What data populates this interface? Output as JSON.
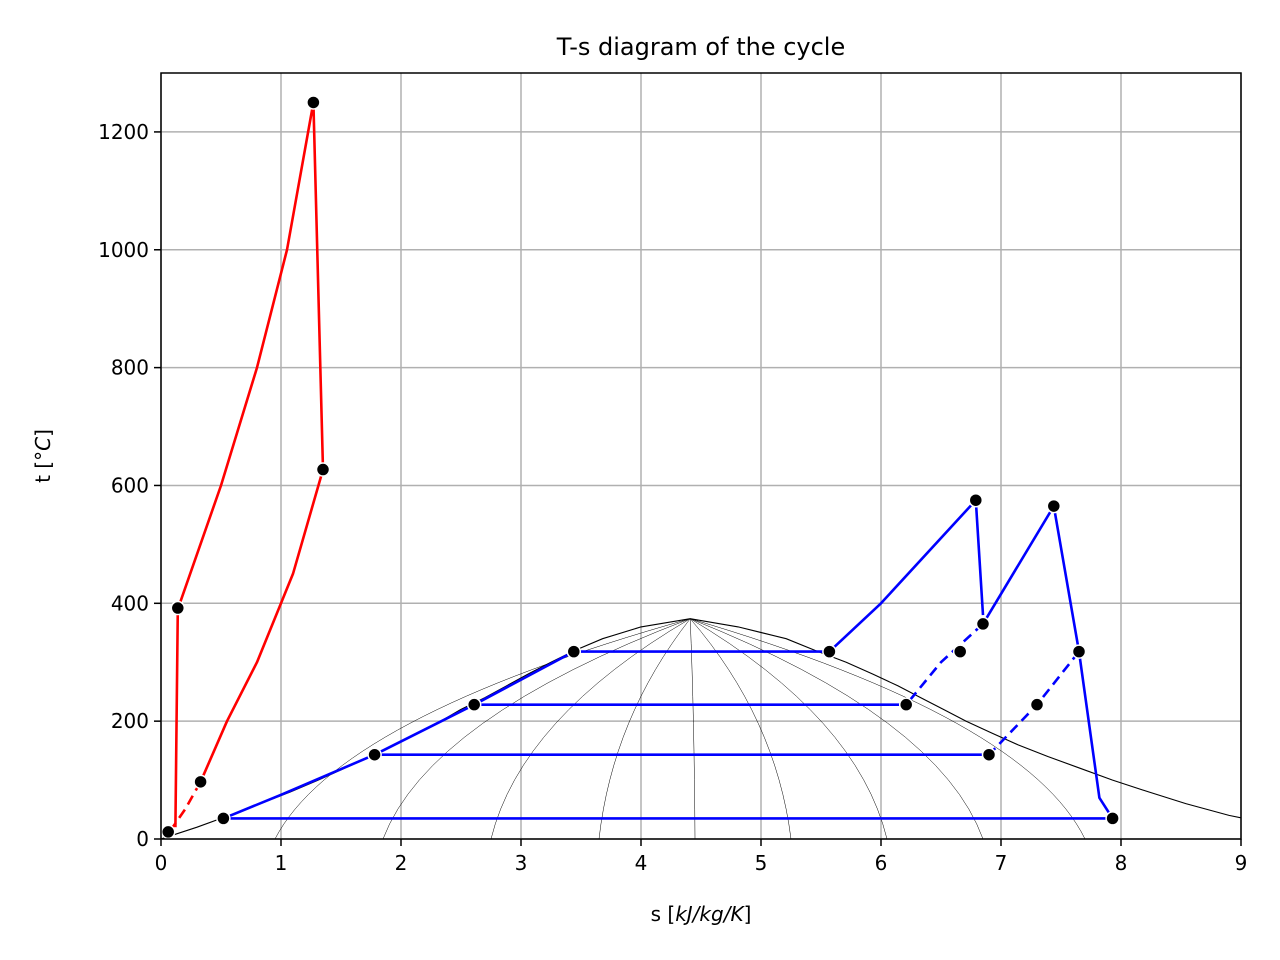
{
  "chart_data": {
    "type": "line",
    "title": "T-s diagram of the cycle",
    "xlabel_prefix": "s [",
    "xlabel_unit": "kJ/kg/K",
    "xlabel_suffix": "]",
    "ylabel_prefix": "t [",
    "ylabel_unit": "°C",
    "ylabel_suffix": "]",
    "xlim": [
      0,
      9
    ],
    "ylim": [
      0,
      1300
    ],
    "xticks": [
      0,
      1,
      2,
      3,
      4,
      5,
      6,
      7,
      8,
      9
    ],
    "yticks": [
      0,
      200,
      400,
      600,
      800,
      1000,
      1200
    ],
    "grid": true,
    "colors": {
      "topping": "#ff0000",
      "steam": "#0000ff",
      "dome": "#000000",
      "marker": "#000000",
      "grid": "#b0b0b0"
    },
    "saturation_dome": [
      [
        0.0,
        0.01
      ],
      [
        0.3,
        20
      ],
      [
        0.57,
        40
      ],
      [
        0.83,
        60
      ],
      [
        1.08,
        80
      ],
      [
        1.31,
        100
      ],
      [
        1.53,
        120
      ],
      [
        1.74,
        140
      ],
      [
        1.94,
        160
      ],
      [
        2.14,
        180
      ],
      [
        2.33,
        200
      ],
      [
        2.5,
        220
      ],
      [
        2.7,
        240
      ],
      [
        2.88,
        260
      ],
      [
        3.06,
        280
      ],
      [
        3.25,
        300
      ],
      [
        3.45,
        320
      ],
      [
        3.68,
        340
      ],
      [
        4.0,
        360
      ],
      [
        4.41,
        373.9
      ],
      [
        4.81,
        360
      ],
      [
        5.21,
        340
      ],
      [
        5.45,
        320
      ],
      [
        5.71,
        300
      ],
      [
        5.93,
        280
      ],
      [
        6.14,
        260
      ],
      [
        6.33,
        240
      ],
      [
        6.52,
        220
      ],
      [
        6.71,
        200
      ],
      [
        6.92,
        180
      ],
      [
        7.14,
        160
      ],
      [
        7.39,
        140
      ],
      [
        7.66,
        120
      ],
      [
        7.93,
        100
      ],
      [
        8.23,
        80
      ],
      [
        8.54,
        60
      ],
      [
        8.9,
        40
      ],
      [
        9.0,
        36
      ]
    ],
    "quality_lines": [
      {
        "x": [
          0.95,
          4.41
        ],
        "y": [
          0,
          373.9
        ]
      },
      {
        "x": [
          1.85,
          4.41
        ],
        "y": [
          0,
          373.9
        ]
      },
      {
        "x": [
          2.75,
          4.41
        ],
        "y": [
          0,
          373.9
        ]
      },
      {
        "x": [
          3.65,
          4.41
        ],
        "y": [
          0,
          373.9
        ]
      },
      {
        "x": [
          4.45,
          4.41
        ],
        "y": [
          0,
          373.9
        ]
      },
      {
        "x": [
          5.25,
          4.41
        ],
        "y": [
          0,
          373.9
        ]
      },
      {
        "x": [
          6.05,
          4.41
        ],
        "y": [
          0,
          373.9
        ]
      },
      {
        "x": [
          6.85,
          4.41
        ],
        "y": [
          0,
          373.9
        ]
      },
      {
        "x": [
          7.7,
          4.41
        ],
        "y": [
          0,
          373.9
        ]
      }
    ],
    "series": [
      {
        "style": "topping",
        "dash": false,
        "points": [
          [
            0.12,
            20
          ],
          [
            0.14,
            390
          ],
          [
            0.5,
            600
          ],
          [
            0.8,
            800
          ],
          [
            1.05,
            1000
          ],
          [
            1.27,
            1250
          ],
          [
            1.35,
            627
          ],
          [
            1.1,
            450
          ],
          [
            0.8,
            300
          ],
          [
            0.55,
            200
          ],
          [
            0.33,
            97
          ]
        ]
      },
      {
        "style": "topping",
        "dash": true,
        "points": [
          [
            0.33,
            97
          ],
          [
            0.2,
            50
          ],
          [
            0.08,
            15
          ]
        ]
      },
      {
        "style": "steam",
        "dash": false,
        "points": [
          [
            0.52,
            35
          ],
          [
            1.0,
            75
          ],
          [
            1.78,
            143
          ],
          [
            2.61,
            228
          ],
          [
            3.44,
            318
          ],
          [
            5.57,
            318
          ],
          [
            6.0,
            400
          ],
          [
            6.79,
            575
          ],
          [
            6.85,
            380
          ]
        ]
      },
      {
        "style": "steam",
        "dash": true,
        "points": [
          [
            6.85,
            365
          ],
          [
            6.5,
            300
          ],
          [
            6.21,
            228
          ]
        ]
      },
      {
        "style": "steam",
        "dash": false,
        "points": [
          [
            6.21,
            228
          ],
          [
            2.61,
            228
          ]
        ]
      },
      {
        "style": "steam",
        "dash": false,
        "points": [
          [
            6.85,
            365
          ],
          [
            7.44,
            565
          ],
          [
            7.65,
            318
          ],
          [
            7.82,
            70
          ],
          [
            7.93,
            35
          ],
          [
            0.52,
            35
          ]
        ]
      },
      {
        "style": "steam",
        "dash": true,
        "points": [
          [
            7.65,
            318
          ],
          [
            7.3,
            228
          ],
          [
            6.9,
            143
          ]
        ]
      },
      {
        "style": "steam",
        "dash": false,
        "points": [
          [
            6.9,
            143
          ],
          [
            1.78,
            143
          ]
        ]
      }
    ],
    "markers": [
      [
        0.06,
        12
      ],
      [
        0.14,
        392
      ],
      [
        0.33,
        97
      ],
      [
        1.27,
        1250
      ],
      [
        1.35,
        627
      ],
      [
        0.52,
        35
      ],
      [
        1.78,
        143
      ],
      [
        2.61,
        228
      ],
      [
        3.44,
        318
      ],
      [
        5.57,
        318
      ],
      [
        6.79,
        575
      ],
      [
        6.85,
        365
      ],
      [
        6.66,
        318
      ],
      [
        6.21,
        228
      ],
      [
        6.9,
        143
      ],
      [
        7.44,
        565
      ],
      [
        7.65,
        318
      ],
      [
        7.3,
        228
      ],
      [
        7.93,
        35
      ]
    ]
  }
}
